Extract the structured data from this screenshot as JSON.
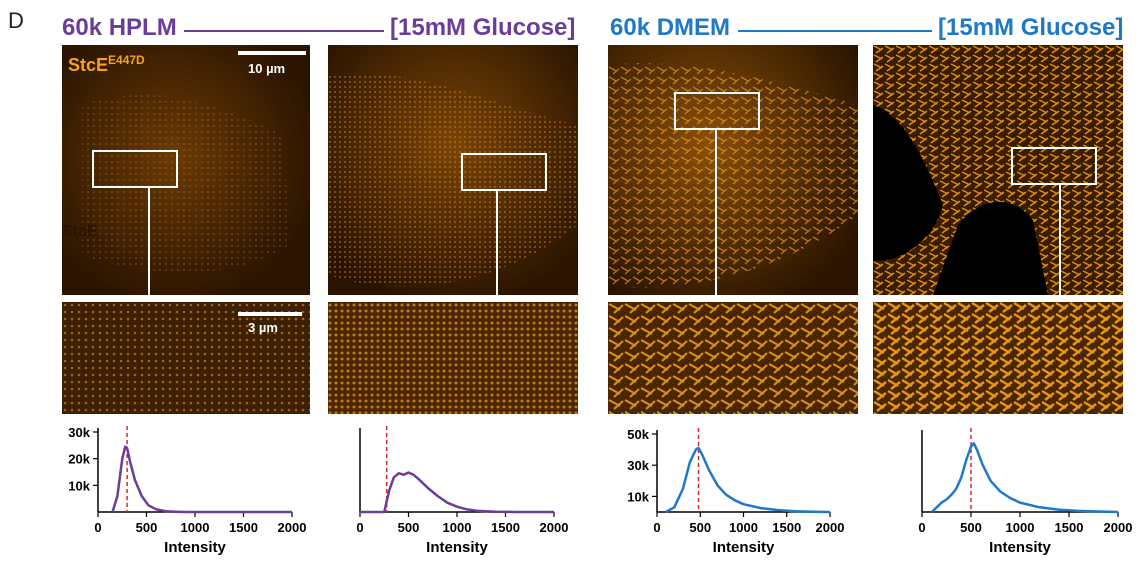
{
  "figure": {
    "panel_letter": "D",
    "groups": [
      {
        "condition": "60k HPLM",
        "glucose": "[15mM Glucose]",
        "color": "#6a3d9a"
      },
      {
        "condition": "60k DMEM",
        "glucose": "[15mM Glucose]",
        "color": "#1f78c8"
      }
    ],
    "stain_label": "StcE",
    "stain_superscript": "E447D",
    "stain_ghost_label": "StcE",
    "scalebar_large": "10 µm",
    "scalebar_small": "3 µm",
    "image_color": "#f7a21b"
  },
  "chart_data": [
    {
      "type": "line",
      "series": [
        {
          "color": "#6a3d9a",
          "x": [
            150,
            200,
            250,
            280,
            300,
            330,
            380,
            450,
            520,
            600,
            700,
            800,
            900,
            1000,
            2000
          ],
          "y": [
            0,
            6000,
            20000,
            24500,
            24000,
            19000,
            12000,
            6000,
            2500,
            1000,
            300,
            100,
            0,
            0,
            0
          ]
        }
      ],
      "marker_x": 300,
      "xlabel": "Intensity",
      "xticks": [
        "0",
        "500",
        "1000",
        "1500",
        "2000"
      ],
      "xlim": [
        0,
        2000
      ],
      "yticks": [
        "10k",
        "20k",
        "30k"
      ],
      "ylim": [
        0,
        30000
      ]
    },
    {
      "type": "line",
      "series": [
        {
          "color": "#6a3d9a",
          "x": [
            0,
            250,
            300,
            350,
            400,
            450,
            500,
            550,
            600,
            700,
            800,
            900,
            1000,
            1100,
            1200,
            1400,
            1600,
            2000
          ],
          "y": [
            0,
            0,
            8000,
            13000,
            14500,
            14000,
            14800,
            14000,
            12500,
            9000,
            6000,
            3500,
            2000,
            1000,
            500,
            100,
            0,
            0
          ]
        }
      ],
      "marker_x": 275,
      "xlabel": "Intensity",
      "xticks": [
        "0",
        "500",
        "1000",
        "1500",
        "2000"
      ],
      "xlim": [
        0,
        2000
      ],
      "yticks": [],
      "ylim": [
        0,
        30000
      ]
    },
    {
      "type": "line",
      "series": [
        {
          "color": "#1f78c8",
          "x": [
            100,
            200,
            300,
            380,
            450,
            480,
            520,
            600,
            700,
            800,
            900,
            1000,
            1200,
            1400,
            1600,
            1800,
            2000
          ],
          "y": [
            0,
            3000,
            15000,
            32000,
            40000,
            41000,
            37000,
            27000,
            17000,
            11000,
            7500,
            5000,
            2500,
            1200,
            500,
            200,
            0
          ]
        }
      ],
      "marker_x": 480,
      "xlabel": "Intensity",
      "xticks": [
        "0",
        "500",
        "1000",
        "1500",
        "2000"
      ],
      "xlim": [
        0,
        2000
      ],
      "yticks": [
        "10k",
        "30k",
        "50k"
      ],
      "ytick_values": [
        10000,
        30000,
        50000
      ],
      "ylim": [
        0,
        50000
      ]
    },
    {
      "type": "line",
      "series": [
        {
          "color": "#1f78c8",
          "x": [
            100,
            150,
            200,
            250,
            300,
            350,
            400,
            450,
            500,
            530,
            560,
            620,
            700,
            800,
            900,
            1000,
            1200,
            1400,
            1600,
            1800,
            2000
          ],
          "y": [
            0,
            3000,
            6000,
            8000,
            11000,
            15000,
            22000,
            33000,
            42000,
            44000,
            40000,
            30000,
            20000,
            13000,
            9000,
            6000,
            3000,
            1500,
            700,
            300,
            0
          ]
        }
      ],
      "marker_x": 500,
      "xlabel": "Intensity",
      "xticks": [
        "0",
        "500",
        "1000",
        "1500",
        "2000"
      ],
      "xlim": [
        0,
        2000
      ],
      "yticks": [],
      "ylim": [
        0,
        50000
      ]
    }
  ]
}
